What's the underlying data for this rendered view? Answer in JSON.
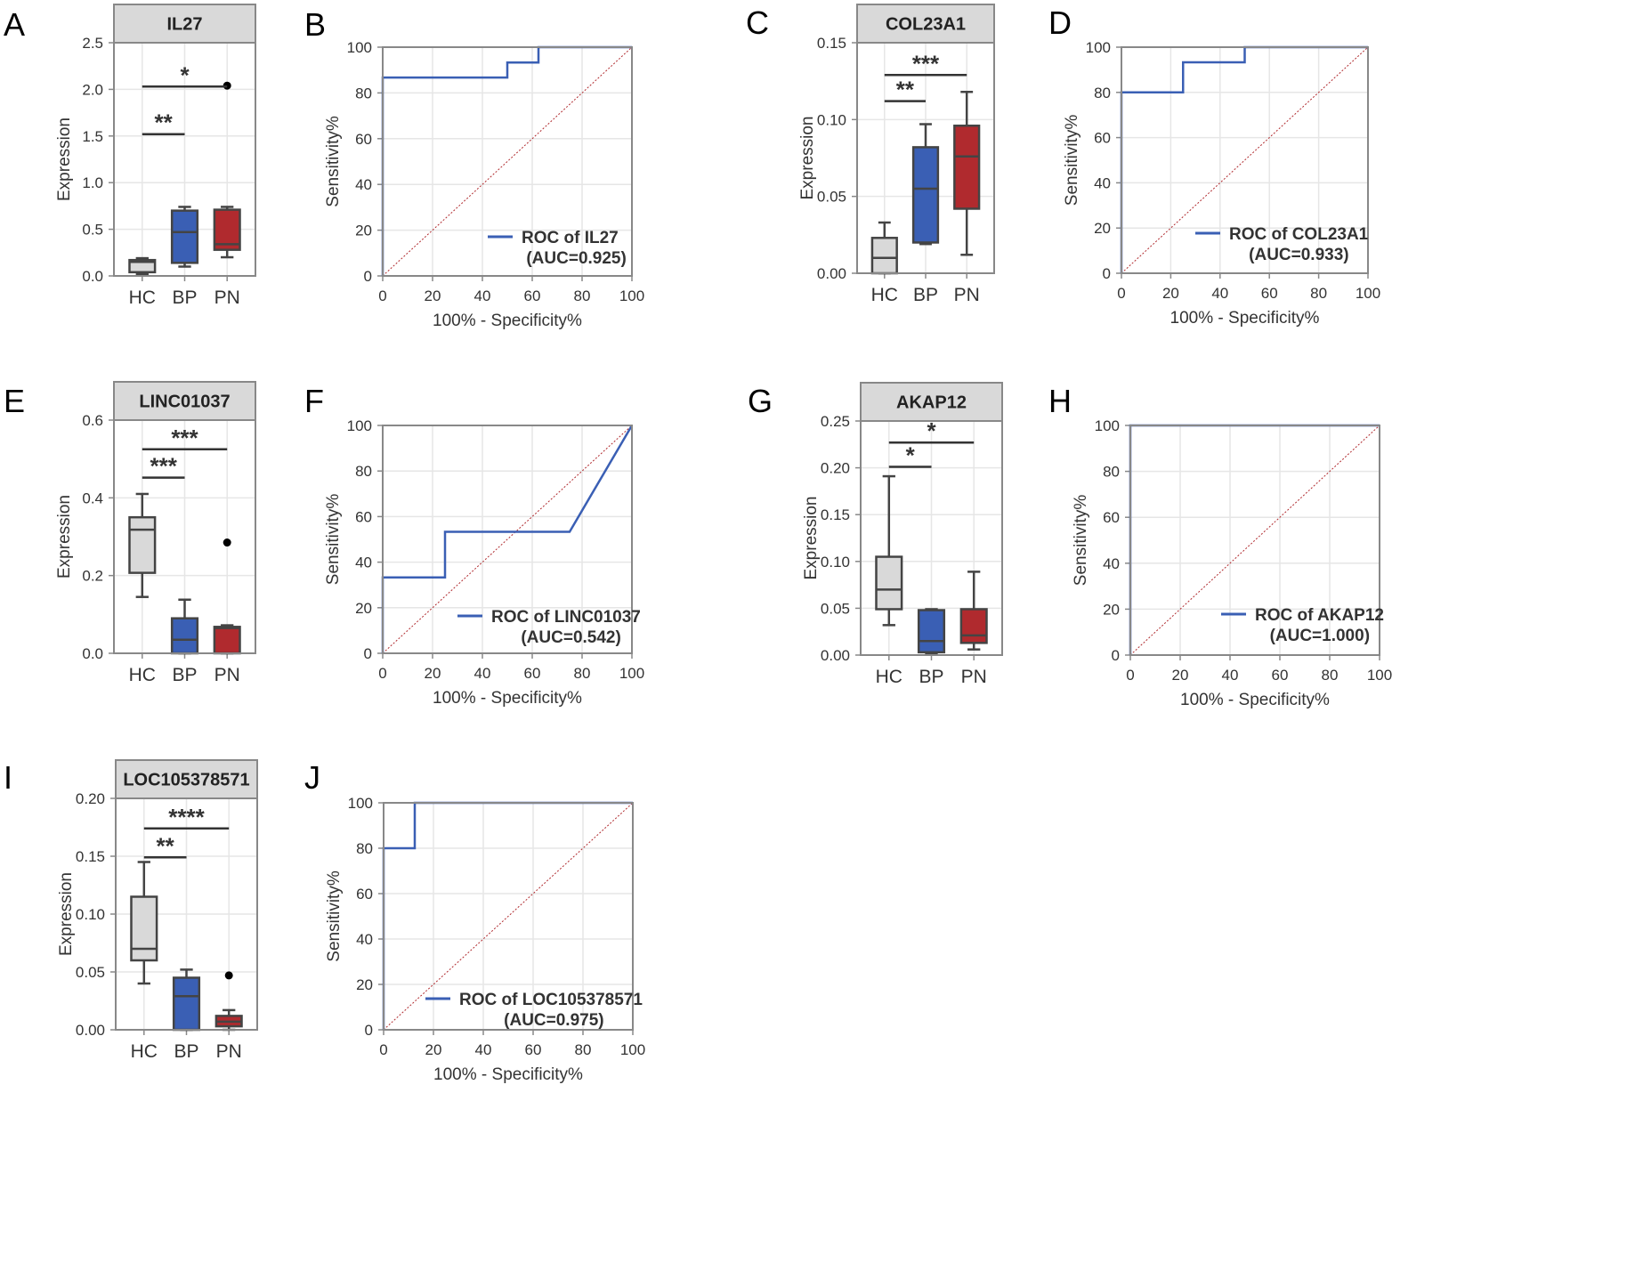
{
  "chart_data": [
    {
      "panel": "A",
      "type": "boxplot",
      "title": "IL27",
      "ylabel": "Expression",
      "ylim": [
        0,
        2.5
      ],
      "yticks": [
        "0.0",
        "0.5",
        "1.0",
        "1.5",
        "2.0",
        "2.5"
      ],
      "categories": [
        "HC",
        "BP",
        "PN"
      ],
      "boxes": [
        {
          "group": "HC",
          "whisker_low": 0.02,
          "q1": 0.04,
          "median": 0.15,
          "q3": 0.17,
          "whisker_high": 0.19,
          "color": "#d9d9d9"
        },
        {
          "group": "BP",
          "whisker_low": 0.1,
          "q1": 0.14,
          "median": 0.47,
          "q3": 0.7,
          "whisker_high": 0.74,
          "color": "#3a5fb4"
        },
        {
          "group": "PN",
          "whisker_low": 0.2,
          "q1": 0.28,
          "median": 0.34,
          "q3": 0.71,
          "whisker_high": 0.74,
          "color": "#b02a2e"
        }
      ],
      "outliers": [
        {
          "group": "PN",
          "value": 2.04
        }
      ],
      "significance": [
        {
          "from": "HC",
          "to": "BP",
          "label": "**",
          "y": 1.52
        },
        {
          "from": "HC",
          "to": "PN",
          "label": "*",
          "y": 2.03
        }
      ]
    },
    {
      "panel": "B",
      "type": "roc",
      "xlabel": "100% - Specificity%",
      "ylabel": "Sensitivity%",
      "xlim": [
        0,
        100
      ],
      "ylim": [
        0,
        100
      ],
      "ticks": [
        "0",
        "20",
        "40",
        "60",
        "80",
        "100"
      ],
      "curve": [
        [
          0,
          0
        ],
        [
          0,
          86.7
        ],
        [
          50,
          86.7
        ],
        [
          50,
          93.3
        ],
        [
          62.5,
          93.3
        ],
        [
          62.5,
          100
        ],
        [
          100,
          100
        ]
      ],
      "legend": {
        "line1": "ROC of IL27",
        "line2": "(AUC=0.925)"
      },
      "color": "#3a5fb4"
    },
    {
      "panel": "C",
      "type": "boxplot",
      "title": "COL23A1",
      "ylabel": "Expression",
      "ylim": [
        0,
        0.15
      ],
      "yticks": [
        "0.00",
        "0.05",
        "0.10",
        "0.15"
      ],
      "categories": [
        "HC",
        "BP",
        "PN"
      ],
      "boxes": [
        {
          "group": "HC",
          "whisker_low": 0.0,
          "q1": 0.0,
          "median": 0.01,
          "q3": 0.023,
          "whisker_high": 0.033,
          "color": "#d9d9d9"
        },
        {
          "group": "BP",
          "whisker_low": 0.019,
          "q1": 0.02,
          "median": 0.055,
          "q3": 0.082,
          "whisker_high": 0.097,
          "color": "#3a5fb4"
        },
        {
          "group": "PN",
          "whisker_low": 0.012,
          "q1": 0.042,
          "median": 0.076,
          "q3": 0.096,
          "whisker_high": 0.118,
          "color": "#b02a2e"
        }
      ],
      "outliers": [],
      "significance": [
        {
          "from": "HC",
          "to": "BP",
          "label": "**",
          "y": 0.112
        },
        {
          "from": "HC",
          "to": "PN",
          "label": "***",
          "y": 0.129
        }
      ]
    },
    {
      "panel": "D",
      "type": "roc",
      "xlabel": "100% - Specificity%",
      "ylabel": "Sensitivity%",
      "xlim": [
        0,
        100
      ],
      "ylim": [
        0,
        100
      ],
      "ticks": [
        "0",
        "20",
        "40",
        "60",
        "80",
        "100"
      ],
      "curve": [
        [
          0,
          0
        ],
        [
          0,
          80
        ],
        [
          25,
          80
        ],
        [
          25,
          93.3
        ],
        [
          50,
          93.3
        ],
        [
          50,
          100
        ],
        [
          100,
          100
        ]
      ],
      "legend": {
        "line1": "ROC of COL23A1",
        "line2": "(AUC=0.933)"
      },
      "color": "#3a5fb4"
    },
    {
      "panel": "E",
      "type": "boxplot",
      "title": "LINC01037",
      "ylabel": "Expression",
      "ylim": [
        0,
        0.6
      ],
      "yticks": [
        "0.0",
        "0.2",
        "0.4",
        "0.6"
      ],
      "categories": [
        "HC",
        "BP",
        "PN"
      ],
      "boxes": [
        {
          "group": "HC",
          "whisker_low": 0.145,
          "q1": 0.207,
          "median": 0.318,
          "q3": 0.35,
          "whisker_high": 0.41,
          "color": "#d9d9d9"
        },
        {
          "group": "BP",
          "whisker_low": 0.0,
          "q1": 0.0,
          "median": 0.035,
          "q3": 0.09,
          "whisker_high": 0.138,
          "color": "#3a5fb4"
        },
        {
          "group": "PN",
          "whisker_low": 0.0,
          "q1": 0.0,
          "median": 0.065,
          "q3": 0.068,
          "whisker_high": 0.072,
          "color": "#b02a2e"
        }
      ],
      "outliers": [
        {
          "group": "PN",
          "value": 0.285
        }
      ],
      "significance": [
        {
          "from": "HC",
          "to": "BP",
          "label": "***",
          "y": 0.452
        },
        {
          "from": "HC",
          "to": "PN",
          "label": "***",
          "y": 0.525
        }
      ]
    },
    {
      "panel": "F",
      "type": "roc",
      "xlabel": "100% - Specificity%",
      "ylabel": "Sensitivity%",
      "xlim": [
        0,
        100
      ],
      "ylim": [
        0,
        100
      ],
      "ticks": [
        "0",
        "20",
        "40",
        "60",
        "80",
        "100"
      ],
      "curve": [
        [
          0,
          0
        ],
        [
          0,
          33.3
        ],
        [
          25,
          33.3
        ],
        [
          25,
          53.3
        ],
        [
          75,
          53.3
        ],
        [
          100,
          100
        ]
      ],
      "legend": {
        "line1": "ROC of LINC01037",
        "line2": "(AUC=0.542)"
      },
      "color": "#3a5fb4"
    },
    {
      "panel": "G",
      "type": "boxplot",
      "title": "AKAP12",
      "ylabel": "Expression",
      "ylim": [
        0,
        0.25
      ],
      "yticks": [
        "0.00",
        "0.05",
        "0.10",
        "0.15",
        "0.20",
        "0.25"
      ],
      "categories": [
        "HC",
        "BP",
        "PN"
      ],
      "boxes": [
        {
          "group": "HC",
          "whisker_low": 0.032,
          "q1": 0.049,
          "median": 0.07,
          "q3": 0.105,
          "whisker_high": 0.191,
          "color": "#d9d9d9"
        },
        {
          "group": "BP",
          "whisker_low": 0.002,
          "q1": 0.003,
          "median": 0.015,
          "q3": 0.048,
          "whisker_high": 0.049,
          "color": "#3a5fb4"
        },
        {
          "group": "PN",
          "whisker_low": 0.006,
          "q1": 0.013,
          "median": 0.021,
          "q3": 0.049,
          "whisker_high": 0.089,
          "color": "#b02a2e"
        }
      ],
      "outliers": [],
      "significance": [
        {
          "from": "HC",
          "to": "BP",
          "label": "*",
          "y": 0.201
        },
        {
          "from": "HC",
          "to": "PN",
          "label": "*",
          "y": 0.227
        }
      ]
    },
    {
      "panel": "H",
      "type": "roc",
      "xlabel": "100% - Specificity%",
      "ylabel": "Sensitivity%",
      "xlim": [
        0,
        100
      ],
      "ylim": [
        0,
        100
      ],
      "ticks": [
        "0",
        "20",
        "40",
        "60",
        "80",
        "100"
      ],
      "curve": [
        [
          0,
          0
        ],
        [
          0,
          100
        ],
        [
          100,
          100
        ]
      ],
      "legend": {
        "line1": "ROC of AKAP12",
        "line2": "(AUC=1.000)"
      },
      "color": "#3a5fb4"
    },
    {
      "panel": "I",
      "type": "boxplot",
      "title": "LOC105378571",
      "ylabel": "Expression",
      "ylim": [
        0,
        0.2
      ],
      "yticks": [
        "0.00",
        "0.05",
        "0.10",
        "0.15",
        "0.20"
      ],
      "categories": [
        "HC",
        "BP",
        "PN"
      ],
      "boxes": [
        {
          "group": "HC",
          "whisker_low": 0.04,
          "q1": 0.06,
          "median": 0.07,
          "q3": 0.115,
          "whisker_high": 0.145,
          "color": "#d9d9d9"
        },
        {
          "group": "BP",
          "whisker_low": 0.0,
          "q1": 0.0,
          "median": 0.029,
          "q3": 0.045,
          "whisker_high": 0.052,
          "color": "#3a5fb4"
        },
        {
          "group": "PN",
          "whisker_low": 0.0,
          "q1": 0.003,
          "median": 0.007,
          "q3": 0.012,
          "whisker_high": 0.017,
          "color": "#b02a2e"
        }
      ],
      "outliers": [
        {
          "group": "PN",
          "value": 0.047
        }
      ],
      "significance": [
        {
          "from": "HC",
          "to": "BP",
          "label": "**",
          "y": 0.149
        },
        {
          "from": "HC",
          "to": "PN",
          "label": "****",
          "y": 0.174
        }
      ]
    },
    {
      "panel": "J",
      "type": "roc",
      "xlabel": "100% - Specificity%",
      "ylabel": "Sensitivity%",
      "xlim": [
        0,
        100
      ],
      "ylim": [
        0,
        100
      ],
      "ticks": [
        "0",
        "20",
        "40",
        "60",
        "80",
        "100"
      ],
      "curve": [
        [
          0,
          0
        ],
        [
          0,
          80
        ],
        [
          12.5,
          80
        ],
        [
          12.5,
          100
        ],
        [
          100,
          100
        ]
      ],
      "legend": {
        "line1": "ROC of LOC105378571",
        "line2": "(AUC=0.975)"
      },
      "color": "#3a5fb4"
    }
  ]
}
